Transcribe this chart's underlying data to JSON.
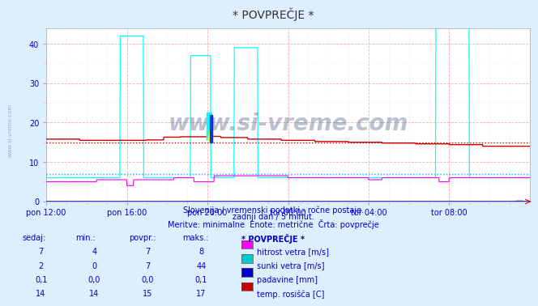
{
  "title": "* POVPREČJE *",
  "background_color": "#ddeeff",
  "plot_bg_color": "#ffffff",
  "grid_color_major": "#ff9999",
  "grid_color_minor": "#ffdddd",
  "subtitle1": "Slovenija / vremenski podatki - ročne postaje.",
  "subtitle2": "zadnji dan / 5 minut.",
  "subtitle3": "Meritve: minimalne  Enote: metrične  Črta: povprečje",
  "xlabel_color": "#0000cc",
  "xticklabels": [
    "pon 12:00",
    "pon 16:00",
    "pon 20:00",
    "tor 00:00",
    "tor 04:00",
    "tor 08:00"
  ],
  "xtick_positions": [
    0,
    240,
    480,
    720,
    960,
    1200
  ],
  "ylim": [
    0,
    44
  ],
  "yticks": [
    0,
    10,
    20,
    30,
    40
  ],
  "total_points": 1440,
  "avg_hitrost": 7,
  "avg_sunki": 7,
  "avg_temp": 15,
  "series_colors": {
    "hitrost": "#ff00ff",
    "sunki": "#00ffff",
    "padavine": "#0000cc",
    "temp": "#cc0000"
  },
  "table_headers": [
    "sedaj:",
    "min.:",
    "povpr.:",
    "maks.:",
    "* POVPREČJE *"
  ],
  "table_rows": [
    {
      "sedaj": "7",
      "min": "4",
      "povpr": "7",
      "maks": "8",
      "label": "hitrost vetra [m/s]",
      "color": "#ff00ff"
    },
    {
      "sedaj": "2",
      "min": "0",
      "povpr": "7",
      "maks": "44",
      "label": "sunki vetra [m/s]",
      "color": "#00cccc"
    },
    {
      "sedaj": "0,1",
      "min": "0,0",
      "povpr": "0,0",
      "maks": "0,1",
      "label": "padavine [mm]",
      "color": "#0000cc"
    },
    {
      "sedaj": "14",
      "min": "14",
      "povpr": "15",
      "maks": "17",
      "label": "temp. rosišča [C]",
      "color": "#cc0000"
    }
  ],
  "watermark": "www.si-vreme.com",
  "left_label": "www.si-vreme.com"
}
